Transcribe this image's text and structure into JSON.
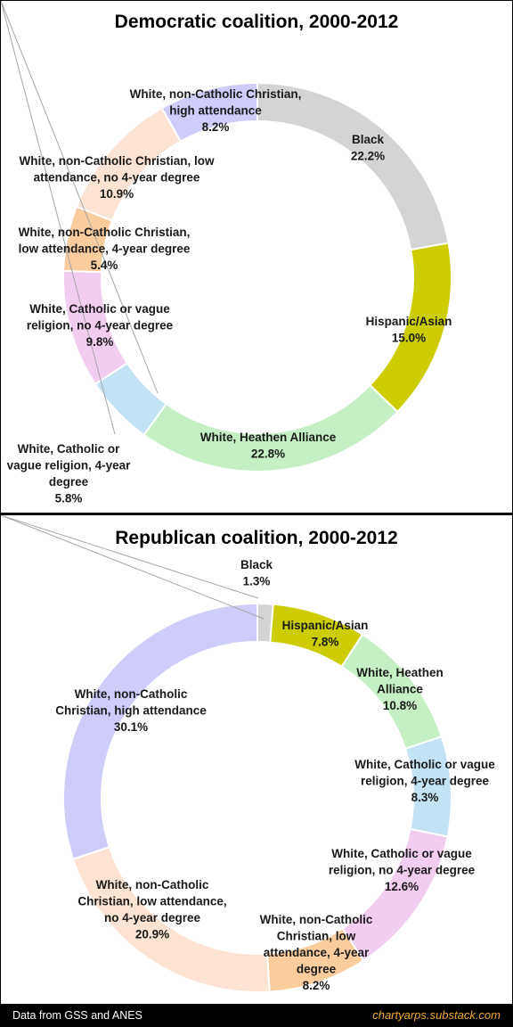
{
  "footer": {
    "source": "Data from GSS and ANES",
    "site": "chartyarps.substack.com"
  },
  "chart_data": [
    {
      "type": "pie",
      "style": "donut",
      "title": "Democratic coalition, 2000-2012",
      "categories": [
        "Black",
        "Hispanic/Asian",
        "White, Heathen Alliance",
        "White, Catholic or vague religion, 4-year degree",
        "White, Catholic or vague religion, no 4-year degree",
        "White, non-Catholic Christian, low attendance, 4-year degree",
        "White, non-Catholic Christian, low attendance, no 4-year degree",
        "White, non-Catholic Christian, high attendance"
      ],
      "values": [
        22.2,
        15.0,
        22.8,
        5.8,
        9.8,
        5.4,
        10.9,
        8.2
      ],
      "value_labels": [
        "22.2%",
        "15.0%",
        "22.8%",
        "5.8%",
        "9.8%",
        "5.4%",
        "10.9%",
        "8.2%"
      ],
      "colors": [
        "#d4d4d4",
        "#cccc00",
        "#c6efc6",
        "#c3e2f3",
        "#f1cdef",
        "#fbcc9c",
        "#fce3d3",
        "#cdccfa"
      ],
      "label_lines": [
        [
          "Black",
          "22.2%"
        ],
        [
          "Hispanic/Asian",
          "15.0%"
        ],
        [
          "White, Heathen Alliance",
          "22.8%"
        ],
        [
          "White, Catholic or",
          "vague religion, 4-year",
          "degree",
          "5.8%"
        ],
        [
          "White, Catholic or vague",
          "religion, no 4-year degree",
          "9.8%"
        ],
        [
          "White, non-Catholic Christian,",
          "low attendance, 4-year degree",
          "5.4%"
        ],
        [
          "White, non-Catholic Christian, low",
          "attendance, no 4-year degree",
          "10.9%"
        ],
        [
          "White, non-Catholic Christian,",
          "high attendance",
          "8.2%"
        ]
      ]
    },
    {
      "type": "pie",
      "style": "donut",
      "title": "Republican coalition, 2000-2012",
      "categories": [
        "Black",
        "Hispanic/Asian",
        "White, Heathen Alliance",
        "White, Catholic or vague religion, 4-year degree",
        "White, Catholic or vague religion, no 4-year degree",
        "White, non-Catholic Christian, low attendance, 4-year degree",
        "White, non-Catholic Christian, low attendance, no 4-year degree",
        "White, non-Catholic Christian, high attendance"
      ],
      "values": [
        1.3,
        7.8,
        10.8,
        8.3,
        12.6,
        8.2,
        20.9,
        30.1
      ],
      "value_labels": [
        "1.3%",
        "7.8%",
        "10.8%",
        "8.3%",
        "12.6%",
        "8.2%",
        "20.9%",
        "30.1%"
      ],
      "colors": [
        "#d4d4d4",
        "#cccc00",
        "#c6efc6",
        "#c3e2f3",
        "#f1cdef",
        "#fbcc9c",
        "#fce3d3",
        "#cdccfa"
      ],
      "label_lines": [
        [
          "Black",
          "1.3%"
        ],
        [
          "Hispanic/Asian",
          "7.8%"
        ],
        [
          "White, Heathen",
          "Alliance",
          "10.8%"
        ],
        [
          "White, Catholic or vague",
          "religion, 4-year degree",
          "8.3%"
        ],
        [
          "White, Catholic or vague",
          "religion, no 4-year degree",
          "12.6%"
        ],
        [
          "White, non-Catholic",
          "Christian, low",
          "attendance, 4-year",
          "degree",
          "8.2%"
        ],
        [
          "White, non-Catholic",
          "Christian, low attendance,",
          "no 4-year degree",
          "20.9%"
        ],
        [
          "White, non-Catholic",
          "Christian, high attendance",
          "30.1%"
        ]
      ]
    }
  ]
}
